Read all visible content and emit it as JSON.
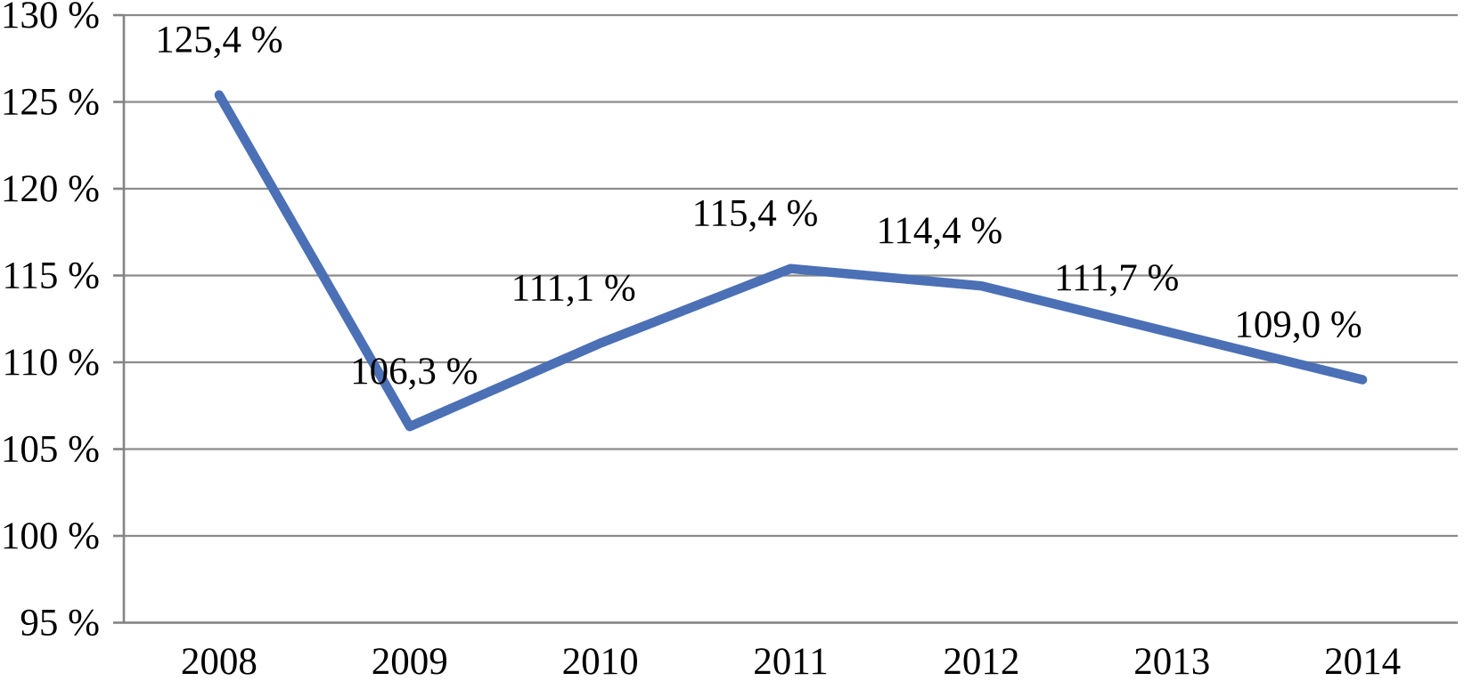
{
  "chart_data": {
    "type": "line",
    "title": "",
    "xlabel": "",
    "ylabel": "",
    "legend": "none",
    "grid": true,
    "categories": [
      "2008",
      "2009",
      "2010",
      "2011",
      "2012",
      "2013",
      "2014"
    ],
    "values": [
      125.4,
      106.3,
      111.1,
      115.4,
      114.4,
      111.7,
      109.0
    ],
    "data_labels": [
      "125,4 %",
      "106,3 %",
      "111,1 %",
      "115,4 %",
      "114,4 %",
      "111,7 %",
      "109,0 %"
    ],
    "ytick_values": [
      130,
      125,
      120,
      115,
      110,
      105,
      100,
      95
    ],
    "ytick_labels": [
      "130 %",
      "125 %",
      "120 %",
      "115 %",
      "110 %",
      "105 %",
      "100 %",
      "95 %"
    ],
    "ylim": [
      95,
      130
    ],
    "colors": {
      "line": "#4B70B6",
      "gridline": "#8C8C8C",
      "axis": "#848484",
      "text": "#000000",
      "background": "#FFFFFF"
    }
  }
}
